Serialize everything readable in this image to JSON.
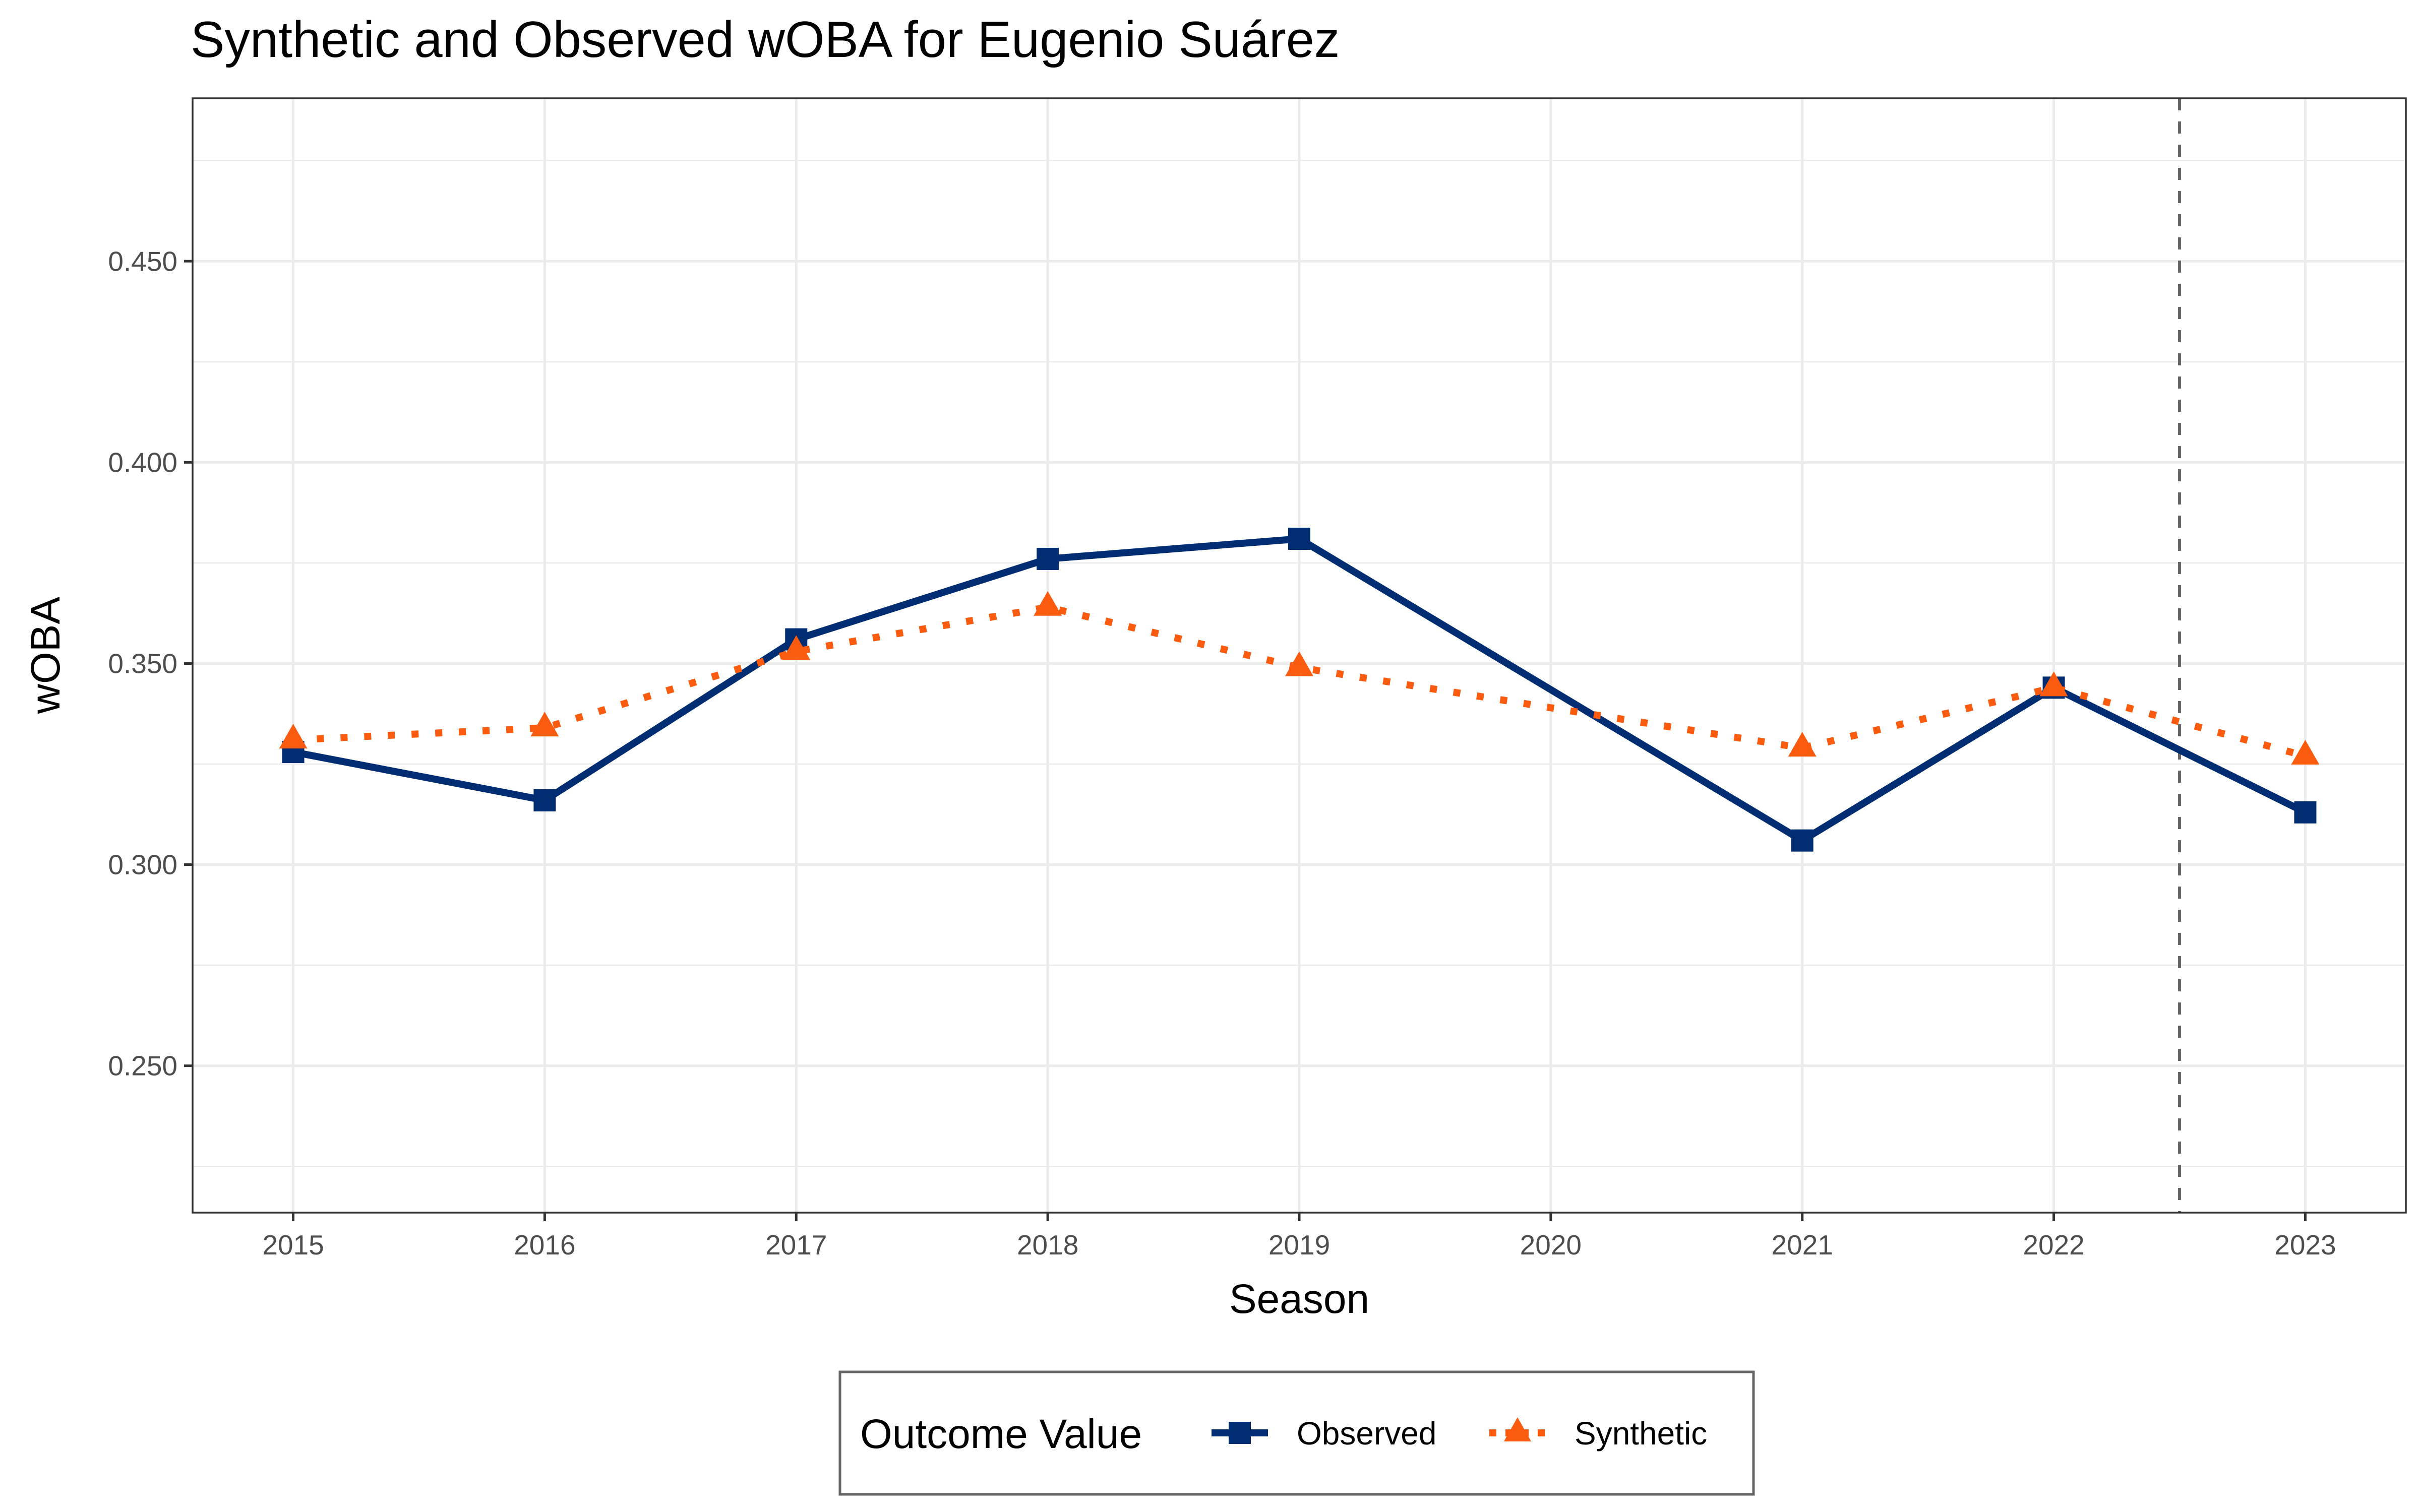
{
  "chart_data": {
    "type": "line",
    "title": "Synthetic and Observed wOBA for Eugenio Suárez",
    "xlabel": "Season",
    "ylabel": "wOBA",
    "x": [
      2015,
      2016,
      2017,
      2018,
      2019,
      2020,
      2021,
      2022,
      2023
    ],
    "x_tick_labels": [
      "2015",
      "2016",
      "2017",
      "2018",
      "2019",
      "2020",
      "2021",
      "2022",
      "2023"
    ],
    "y_ticks": [
      0.25,
      0.3,
      0.35,
      0.4,
      0.45
    ],
    "y_tick_labels": [
      "0.250",
      "0.300",
      "0.350",
      "0.400",
      "0.450"
    ],
    "xlim": [
      2014.6,
      2023.4
    ],
    "ylim": [
      0.2135,
      0.4905
    ],
    "grid": true,
    "series": [
      {
        "name": "Observed",
        "color": "#002d72",
        "line_style": "solid",
        "marker": "square",
        "points": [
          [
            2015,
            0.328
          ],
          [
            2016,
            0.316
          ],
          [
            2017,
            0.356
          ],
          [
            2018,
            0.376
          ],
          [
            2019,
            0.381
          ],
          [
            2021,
            0.306
          ],
          [
            2022,
            0.344
          ],
          [
            2023,
            0.313
          ]
        ]
      },
      {
        "name": "Synthetic",
        "color": "#fa5b0f",
        "line_style": "dotted",
        "marker": "triangle",
        "points": [
          [
            2015,
            0.331
          ],
          [
            2016,
            0.334
          ],
          [
            2017,
            0.353
          ],
          [
            2018,
            0.364
          ],
          [
            2019,
            0.349
          ],
          [
            2021,
            0.329
          ],
          [
            2022,
            0.344
          ],
          [
            2023,
            0.327
          ]
        ]
      }
    ],
    "reference_line": {
      "x": 2022.5,
      "orientation": "vertical",
      "style": "dashed",
      "color": "#666666"
    },
    "legend": {
      "title": "Outcome Value",
      "position": "bottom",
      "entries": [
        "Observed",
        "Synthetic"
      ]
    }
  }
}
